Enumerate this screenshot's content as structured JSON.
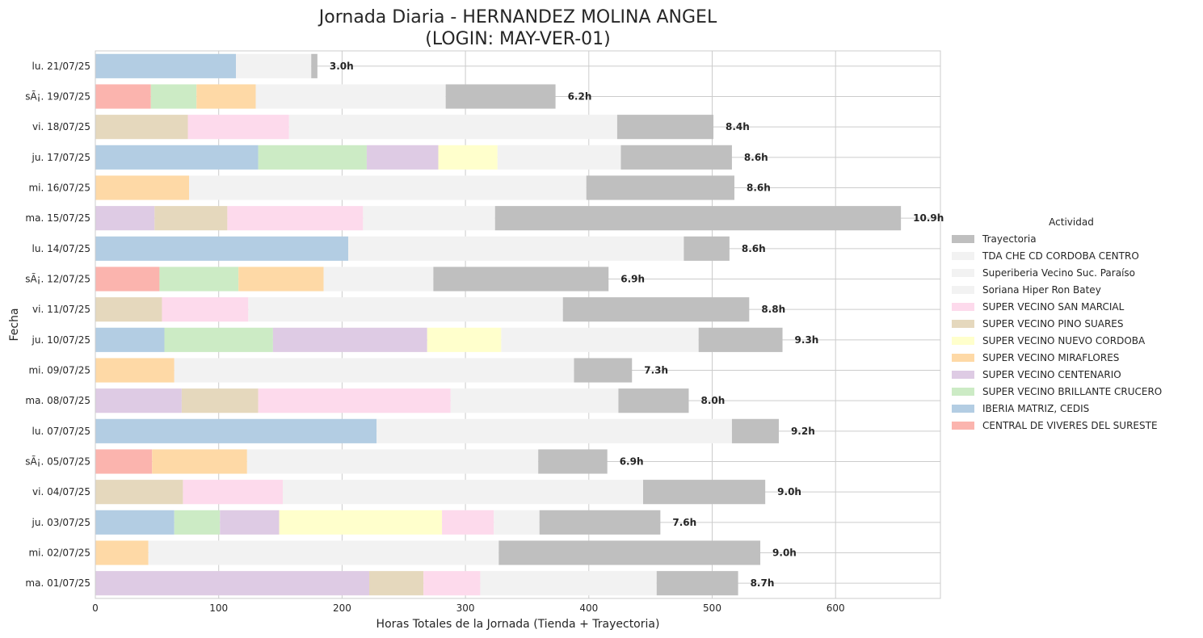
{
  "chart_data": {
    "type": "bar",
    "orientation": "horizontal",
    "stacked": true,
    "title_line1": "Jornada Diaria - HERNANDEZ MOLINA ANGEL",
    "title_line2": "(LOGIN: MAY-VER-01)",
    "xlabel": "Horas Totales de la Jornada (Tienda + Trayectoria)",
    "ylabel": "Fecha",
    "xlim": [
      0,
      685
    ],
    "xticks": [
      0,
      100,
      200,
      300,
      400,
      500,
      600
    ],
    "grid": true,
    "legend_title": "Actividad",
    "legend_position": "center-right",
    "activities": [
      {
        "name": "Trayectoria",
        "color": "#bfbfbf"
      },
      {
        "name": "TDA CHE CD CORDOBA CENTRO",
        "color": "#f2f2f2"
      },
      {
        "name": "Superiberia Vecino Suc. Paraíso",
        "color": "#f2f2f2"
      },
      {
        "name": "Soriana Hiper Ron Batey",
        "color": "#f2f2f2"
      },
      {
        "name": "SUPER VECINO SAN MARCIAL",
        "color": "#fddaec"
      },
      {
        "name": "SUPER VECINO PINO SUARES",
        "color": "#e5d8bd"
      },
      {
        "name": "SUPER VECINO NUEVO CORDOBA",
        "color": "#ffffcc"
      },
      {
        "name": "SUPER VECINO MIRAFLORES",
        "color": "#fed9a6"
      },
      {
        "name": "SUPER VECINO CENTENARIO",
        "color": "#decbe4"
      },
      {
        "name": "SUPER VECINO BRILLANTE CRUCERO",
        "color": "#ccebc5"
      },
      {
        "name": "IBERIA MATRIZ, CEDIS",
        "color": "#b3cde3"
      },
      {
        "name": "CENTRAL DE VIVERES DEL SURESTE",
        "color": "#fbb4ae"
      }
    ],
    "rows": [
      {
        "date": "lu. 21/07/25",
        "label": "3.0h",
        "segments": [
          {
            "activity": "IBERIA MATRIZ, CEDIS",
            "value": 114
          },
          {
            "activity": "TDA CHE CD CORDOBA CENTRO",
            "value": 61
          },
          {
            "activity": "Trayectoria",
            "value": 5
          }
        ]
      },
      {
        "date": "sÃ¡. 19/07/25",
        "label": "6.2h",
        "segments": [
          {
            "activity": "CENTRAL DE VIVERES DEL SURESTE",
            "value": 45
          },
          {
            "activity": "SUPER VECINO BRILLANTE CRUCERO",
            "value": 37
          },
          {
            "activity": "SUPER VECINO MIRAFLORES",
            "value": 48
          },
          {
            "activity": "TDA CHE CD CORDOBA CENTRO",
            "value": 154
          },
          {
            "activity": "Trayectoria",
            "value": 89
          }
        ]
      },
      {
        "date": "vi. 18/07/25",
        "label": "8.4h",
        "segments": [
          {
            "activity": "SUPER VECINO PINO SUARES",
            "value": 75
          },
          {
            "activity": "SUPER VECINO SAN MARCIAL",
            "value": 82
          },
          {
            "activity": "TDA CHE CD CORDOBA CENTRO",
            "value": 266
          },
          {
            "activity": "Trayectoria",
            "value": 78
          }
        ]
      },
      {
        "date": "ju. 17/07/25",
        "label": "8.6h",
        "segments": [
          {
            "activity": "IBERIA MATRIZ, CEDIS",
            "value": 132
          },
          {
            "activity": "SUPER VECINO BRILLANTE CRUCERO",
            "value": 88
          },
          {
            "activity": "SUPER VECINO CENTENARIO",
            "value": 58
          },
          {
            "activity": "SUPER VECINO NUEVO CORDOBA",
            "value": 48
          },
          {
            "activity": "TDA CHE CD CORDOBA CENTRO",
            "value": 100
          },
          {
            "activity": "Trayectoria",
            "value": 90
          }
        ]
      },
      {
        "date": "mi. 16/07/25",
        "label": "8.6h",
        "segments": [
          {
            "activity": "SUPER VECINO MIRAFLORES",
            "value": 76
          },
          {
            "activity": "TDA CHE CD CORDOBA CENTRO",
            "value": 322
          },
          {
            "activity": "Trayectoria",
            "value": 120
          }
        ]
      },
      {
        "date": "ma. 15/07/25",
        "label": "10.9h",
        "segments": [
          {
            "activity": "SUPER VECINO CENTENARIO",
            "value": 48
          },
          {
            "activity": "SUPER VECINO PINO SUARES",
            "value": 59
          },
          {
            "activity": "SUPER VECINO SAN MARCIAL",
            "value": 110
          },
          {
            "activity": "TDA CHE CD CORDOBA CENTRO",
            "value": 107
          },
          {
            "activity": "Trayectoria",
            "value": 329
          }
        ]
      },
      {
        "date": "lu. 14/07/25",
        "label": "8.6h",
        "segments": [
          {
            "activity": "IBERIA MATRIZ, CEDIS",
            "value": 205
          },
          {
            "activity": "TDA CHE CD CORDOBA CENTRO",
            "value": 272
          },
          {
            "activity": "Trayectoria",
            "value": 37
          }
        ]
      },
      {
        "date": "sÃ¡. 12/07/25",
        "label": "6.9h",
        "segments": [
          {
            "activity": "CENTRAL DE VIVERES DEL SURESTE",
            "value": 52
          },
          {
            "activity": "SUPER VECINO BRILLANTE CRUCERO",
            "value": 64
          },
          {
            "activity": "SUPER VECINO MIRAFLORES",
            "value": 69
          },
          {
            "activity": "TDA CHE CD CORDOBA CENTRO",
            "value": 89
          },
          {
            "activity": "Trayectoria",
            "value": 142
          }
        ]
      },
      {
        "date": "vi. 11/07/25",
        "label": "8.8h",
        "segments": [
          {
            "activity": "SUPER VECINO PINO SUARES",
            "value": 54
          },
          {
            "activity": "SUPER VECINO SAN MARCIAL",
            "value": 70
          },
          {
            "activity": "TDA CHE CD CORDOBA CENTRO",
            "value": 255
          },
          {
            "activity": "Trayectoria",
            "value": 151
          }
        ]
      },
      {
        "date": "ju. 10/07/25",
        "label": "9.3h",
        "segments": [
          {
            "activity": "IBERIA MATRIZ, CEDIS",
            "value": 56
          },
          {
            "activity": "SUPER VECINO BRILLANTE CRUCERO",
            "value": 88
          },
          {
            "activity": "SUPER VECINO CENTENARIO",
            "value": 125
          },
          {
            "activity": "SUPER VECINO NUEVO CORDOBA",
            "value": 60
          },
          {
            "activity": "TDA CHE CD CORDOBA CENTRO",
            "value": 160
          },
          {
            "activity": "Trayectoria",
            "value": 68
          }
        ]
      },
      {
        "date": "mi. 09/07/25",
        "label": "7.3h",
        "segments": [
          {
            "activity": "SUPER VECINO MIRAFLORES",
            "value": 64
          },
          {
            "activity": "TDA CHE CD CORDOBA CENTRO",
            "value": 324
          },
          {
            "activity": "Trayectoria",
            "value": 47
          }
        ]
      },
      {
        "date": "ma. 08/07/25",
        "label": "8.0h",
        "segments": [
          {
            "activity": "SUPER VECINO CENTENARIO",
            "value": 70
          },
          {
            "activity": "SUPER VECINO PINO SUARES",
            "value": 62
          },
          {
            "activity": "SUPER VECINO SAN MARCIAL",
            "value": 156
          },
          {
            "activity": "TDA CHE CD CORDOBA CENTRO",
            "value": 136
          },
          {
            "activity": "Trayectoria",
            "value": 57
          }
        ]
      },
      {
        "date": "lu. 07/07/25",
        "label": "9.2h",
        "segments": [
          {
            "activity": "IBERIA MATRIZ, CEDIS",
            "value": 228
          },
          {
            "activity": "TDA CHE CD CORDOBA CENTRO",
            "value": 288
          },
          {
            "activity": "Trayectoria",
            "value": 38
          }
        ]
      },
      {
        "date": "sÃ¡. 05/07/25",
        "label": "6.9h",
        "segments": [
          {
            "activity": "CENTRAL DE VIVERES DEL SURESTE",
            "value": 46
          },
          {
            "activity": "SUPER VECINO MIRAFLORES",
            "value": 77
          },
          {
            "activity": "TDA CHE CD CORDOBA CENTRO",
            "value": 236
          },
          {
            "activity": "Trayectoria",
            "value": 56
          }
        ]
      },
      {
        "date": "vi. 04/07/25",
        "label": "9.0h",
        "segments": [
          {
            "activity": "SUPER VECINO PINO SUARES",
            "value": 71
          },
          {
            "activity": "SUPER VECINO SAN MARCIAL",
            "value": 81
          },
          {
            "activity": "TDA CHE CD CORDOBA CENTRO",
            "value": 292
          },
          {
            "activity": "Trayectoria",
            "value": 99
          }
        ]
      },
      {
        "date": "ju. 03/07/25",
        "label": "7.6h",
        "segments": [
          {
            "activity": "IBERIA MATRIZ, CEDIS",
            "value": 64
          },
          {
            "activity": "SUPER VECINO BRILLANTE CRUCERO",
            "value": 37
          },
          {
            "activity": "SUPER VECINO CENTENARIO",
            "value": 48
          },
          {
            "activity": "SUPER VECINO NUEVO CORDOBA",
            "value": 132
          },
          {
            "activity": "SUPER VECINO SAN MARCIAL",
            "value": 42
          },
          {
            "activity": "TDA CHE CD CORDOBA CENTRO",
            "value": 37
          },
          {
            "activity": "Trayectoria",
            "value": 98
          }
        ]
      },
      {
        "date": "mi. 02/07/25",
        "label": "9.0h",
        "segments": [
          {
            "activity": "SUPER VECINO MIRAFLORES",
            "value": 43
          },
          {
            "activity": "TDA CHE CD CORDOBA CENTRO",
            "value": 284
          },
          {
            "activity": "Trayectoria",
            "value": 212
          }
        ]
      },
      {
        "date": "ma. 01/07/25",
        "label": "8.7h",
        "segments": [
          {
            "activity": "SUPER VECINO CENTENARIO",
            "value": 222
          },
          {
            "activity": "SUPER VECINO PINO SUARES",
            "value": 44
          },
          {
            "activity": "SUPER VECINO SAN MARCIAL",
            "value": 46
          },
          {
            "activity": "TDA CHE CD CORDOBA CENTRO",
            "value": 143
          },
          {
            "activity": "Trayectoria",
            "value": 66
          }
        ]
      }
    ]
  }
}
